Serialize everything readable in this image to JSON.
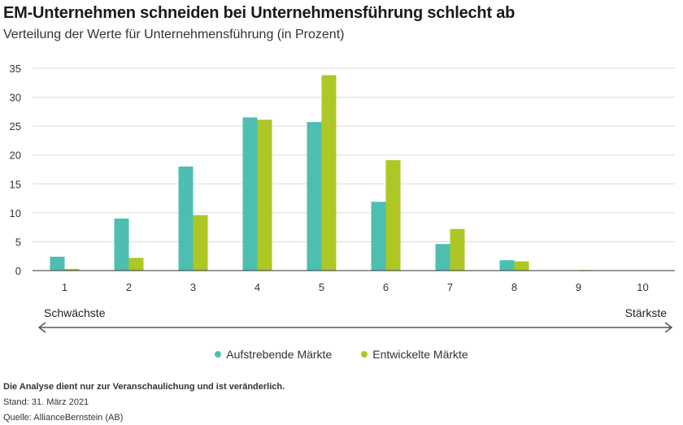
{
  "header": {
    "title": "EM-Unternehmen schneiden bei Unternehmensführung schlecht ab",
    "subtitle": "Verteilung der Werte für Unternehmensführung (in Prozent)"
  },
  "scale": {
    "left": "Schwächste",
    "right": "Stärkste"
  },
  "notes": {
    "disclaimer": "Die Analyse dient nur zur Veranschaulichung und ist veränderlich.",
    "date": "Stand: 31. März 2021",
    "source": "Quelle: AllianceBernstein (AB)"
  },
  "chart_data": {
    "type": "bar",
    "title": "EM-Unternehmen schneiden bei Unternehmensführung schlecht ab",
    "subtitle": "Verteilung der Werte für Unternehmensführung (in Prozent)",
    "categories": [
      "1",
      "2",
      "3",
      "4",
      "5",
      "6",
      "7",
      "8",
      "9",
      "10"
    ],
    "yticks": [
      0,
      5,
      10,
      15,
      20,
      25,
      30,
      35
    ],
    "ylim": [
      0,
      35
    ],
    "grid": true,
    "legend_position": "bottom",
    "series": [
      {
        "name": "Aufstrebende Märkte",
        "color": "#4dbfb0",
        "values": [
          2.4,
          9.0,
          18.0,
          26.5,
          25.7,
          11.9,
          4.6,
          1.8,
          0.0,
          0.0
        ]
      },
      {
        "name": "Entwickelte Märkte",
        "color": "#aec724",
        "values": [
          0.3,
          2.2,
          9.6,
          26.1,
          33.8,
          19.1,
          7.2,
          1.6,
          0.1,
          0.0
        ]
      }
    ]
  }
}
